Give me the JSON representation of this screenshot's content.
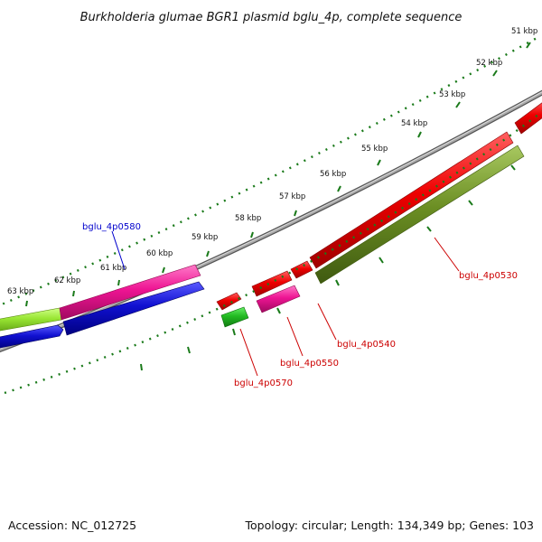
{
  "title": "Burkholderia glumae BGR1 plasmid bglu_4p, complete sequence",
  "accession": "Accession: NC_012725",
  "summary": "Topology: circular; Length: 134,349 bp; Genes: 103",
  "scale_labels": [
    "51 kbp",
    "52 kbp",
    "53 kbp",
    "54 kbp",
    "55 kbp",
    "56 kbp",
    "57 kbp",
    "58 kbp",
    "59 kbp",
    "60 kbp",
    "61 kbp",
    "62 kbp",
    "63 kbp"
  ],
  "gene_labels": [
    {
      "text": "bglu_4p0530",
      "color": "#cc0000"
    },
    {
      "text": "bglu_4p0540",
      "color": "#cc0000"
    },
    {
      "text": "bglu_4p0550",
      "color": "#cc0000"
    },
    {
      "text": "bglu_4p0570",
      "color": "#cc0000"
    },
    {
      "text": "bglu_4p0580",
      "color": "#0000cc"
    }
  ],
  "colors": {
    "backbone": "#8a8a8a",
    "tick_green": "#1a7a1a",
    "cds_red": "#ee0000",
    "rrna_olive": "#6b8e23",
    "pink": "#ee1493",
    "blue": "#1010d0",
    "lime": "#99e633",
    "green": "#22bb22"
  }
}
